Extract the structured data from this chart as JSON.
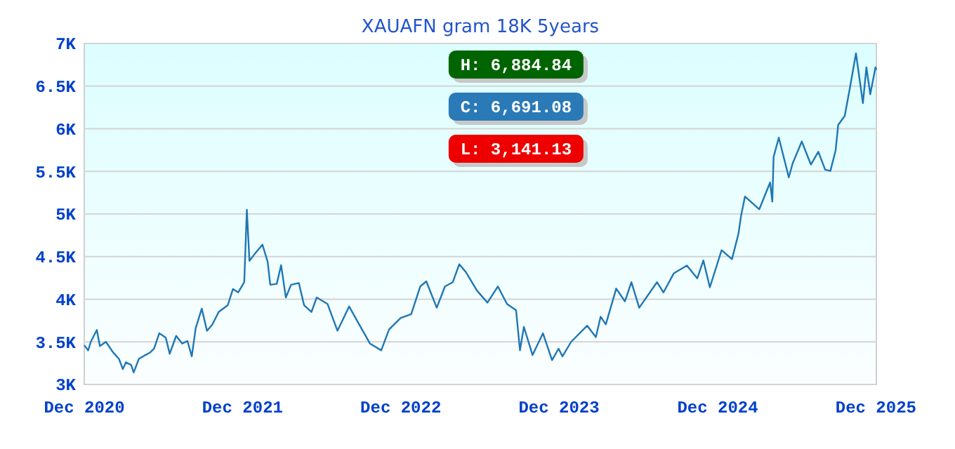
{
  "chart_data": {
    "type": "line",
    "title": "XAUAFN gram 18K 5years",
    "annotations": [
      "H: 6,884.84",
      "C: 6,691.08",
      "L: 3,141.13"
    ],
    "x": [
      "2020-12-01",
      "2020-12-10",
      "2020-12-16",
      "2020-12-30",
      "2021-01-06",
      "2021-01-20",
      "2021-02-05",
      "2021-02-19",
      "2021-02-28",
      "2021-03-07",
      "2021-03-19",
      "2021-03-25",
      "2021-04-06",
      "2021-04-21",
      "2021-05-02",
      "2021-05-11",
      "2021-05-23",
      "2021-06-07",
      "2021-06-16",
      "2021-07-01",
      "2021-07-15",
      "2021-07-27",
      "2021-08-06",
      "2021-08-15",
      "2021-08-29",
      "2021-09-10",
      "2021-09-22",
      "2021-10-07",
      "2021-10-28",
      "2021-11-09",
      "2021-11-21",
      "2021-12-05",
      "2021-12-11",
      "2021-12-17",
      "2021-12-29",
      "2022-01-16",
      "2022-01-28",
      "2022-02-03",
      "2022-02-18",
      "2022-02-28",
      "2022-03-11",
      "2022-03-23",
      "2022-04-10",
      "2022-04-22",
      "2022-05-09",
      "2022-05-21",
      "2022-06-15",
      "2022-07-08",
      "2022-08-04",
      "2022-08-22",
      "2022-09-21",
      "2022-10-17",
      "2022-11-04",
      "2022-12-01",
      "2022-12-25",
      "2023-01-15",
      "2023-01-29",
      "2023-02-22",
      "2023-03-13",
      "2023-03-31",
      "2023-04-15",
      "2023-04-30",
      "2023-05-26",
      "2023-06-19",
      "2023-07-13",
      "2023-08-03",
      "2023-08-24",
      "2023-09-02",
      "2023-09-11",
      "2023-10-01",
      "2023-10-25",
      "2023-11-15",
      "2023-11-30",
      "2023-12-09",
      "2023-12-29",
      "2024-02-04",
      "2024-02-24",
      "2024-03-06",
      "2024-03-18",
      "2024-04-11",
      "2024-05-01",
      "2024-05-16",
      "2024-06-03",
      "2024-07-14",
      "2024-07-29",
      "2024-08-22",
      "2024-09-21",
      "2024-10-15",
      "2024-10-29",
      "2024-11-13",
      "2024-12-10",
      "2025-01-03",
      "2025-01-18",
      "2025-01-24",
      "2025-02-02",
      "2025-03-07",
      "2025-04-01",
      "2025-04-06",
      "2025-04-09",
      "2025-04-21",
      "2025-05-14",
      "2025-05-23",
      "2025-06-13",
      "2025-07-04",
      "2025-07-21",
      "2025-08-06",
      "2025-08-18",
      "2025-08-30",
      "2025-09-05",
      "2025-09-20",
      "2025-10-01",
      "2025-10-16",
      "2025-11-01",
      "2025-11-09",
      "2025-11-18",
      "2025-11-30",
      "2025-12-02"
    ],
    "series": [
      {
        "color": "#1f77b4",
        "values": [
          3460,
          3400,
          3500,
          3640,
          3450,
          3500,
          3380,
          3300,
          3180,
          3260,
          3230,
          3141,
          3300,
          3345,
          3375,
          3420,
          3600,
          3550,
          3360,
          3570,
          3480,
          3510,
          3330,
          3660,
          3890,
          3630,
          3700,
          3850,
          3930,
          4120,
          4080,
          4200,
          5050,
          4450,
          4530,
          4640,
          4440,
          4170,
          4180,
          4400,
          4020,
          4170,
          4190,
          3930,
          3850,
          4020,
          3945,
          3630,
          3915,
          3750,
          3480,
          3400,
          3645,
          3780,
          3825,
          4150,
          4210,
          3900,
          4150,
          4200,
          4410,
          4320,
          4100,
          3960,
          4150,
          3945,
          3870,
          3400,
          3675,
          3345,
          3600,
          3285,
          3420,
          3330,
          3500,
          3690,
          3555,
          3795,
          3705,
          4125,
          3975,
          4200,
          3900,
          4200,
          4080,
          4305,
          4395,
          4245,
          4455,
          4140,
          4575,
          4470,
          4770,
          4980,
          5205,
          5055,
          5370,
          5145,
          5670,
          5895,
          5430,
          5595,
          5850,
          5580,
          5730,
          5520,
          5505,
          5745,
          6045,
          6150,
          6450,
          6885,
          6300,
          6720,
          6405,
          6720,
          6691
        ]
      }
    ],
    "xlim": [
      "2020-12-01",
      "2025-12-02"
    ],
    "xticks": [
      {
        "value": "2020-12-01",
        "label": "Dec 2020"
      },
      {
        "value": "2021-12-01",
        "label": "Dec 2021"
      },
      {
        "value": "2022-12-01",
        "label": "Dec 2022"
      },
      {
        "value": "2023-12-01",
        "label": "Dec 2023"
      },
      {
        "value": "2024-12-01",
        "label": "Dec 2024"
      },
      {
        "value": "2025-12-01",
        "label": "Dec 2025"
      }
    ],
    "ylim": [
      3000,
      7000
    ],
    "yticks": [
      {
        "value": 3000,
        "label": "3K"
      },
      {
        "value": 3500,
        "label": "3.5K"
      },
      {
        "value": 4000,
        "label": "4K"
      },
      {
        "value": 4500,
        "label": "4.5K"
      },
      {
        "value": 5000,
        "label": "5K"
      },
      {
        "value": 5500,
        "label": "5.5K"
      },
      {
        "value": 6000,
        "label": "6K"
      },
      {
        "value": 6500,
        "label": "6.5K"
      },
      {
        "value": 7000,
        "label": "7K"
      }
    ],
    "grid": "y",
    "marker": "none",
    "line_style": "solid"
  }
}
